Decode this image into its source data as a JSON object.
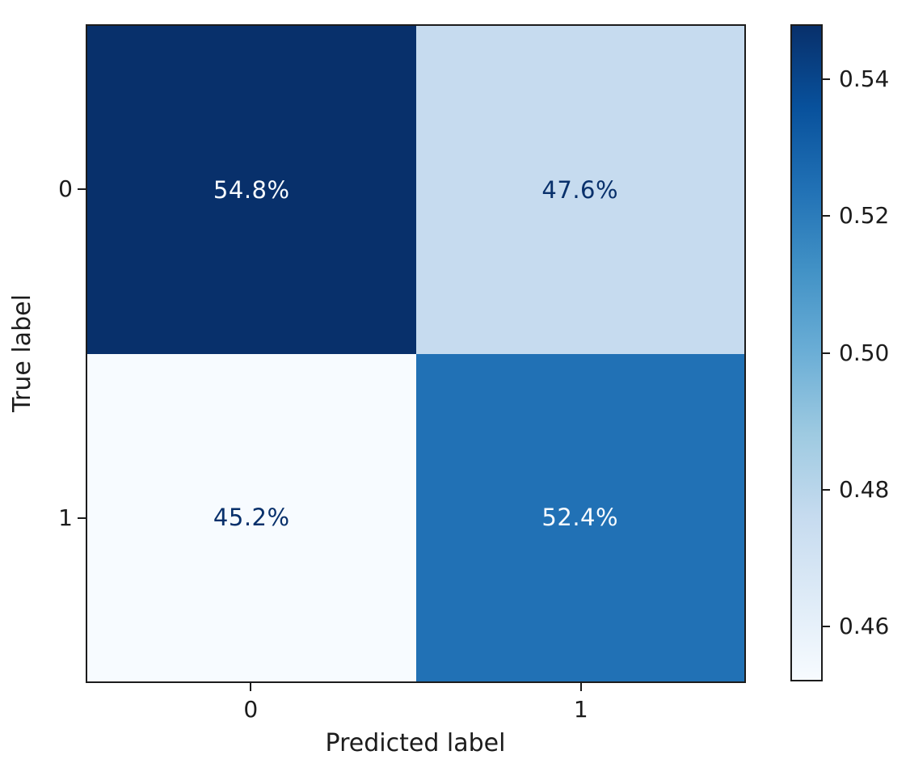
{
  "chart_data": {
    "type": "heatmap",
    "subtype": "confusion_matrix",
    "title": "",
    "xlabel": "Predicted label",
    "ylabel": "True label",
    "x_tick_labels": [
      "0",
      "1"
    ],
    "y_tick_labels": [
      "0",
      "1"
    ],
    "rows": [
      [
        {
          "label": "54.8%",
          "value": 0.548,
          "bg": "#08306b",
          "fg": "#f7fbff"
        },
        {
          "label": "47.6%",
          "value": 0.476,
          "bg": "#c6dbef",
          "fg": "#08306b"
        }
      ],
      [
        {
          "label": "45.2%",
          "value": 0.452,
          "bg": "#f7fbff",
          "fg": "#08306b"
        },
        {
          "label": "52.4%",
          "value": 0.524,
          "bg": "#2171b5",
          "fg": "#f7fbff"
        }
      ]
    ],
    "colorbar": {
      "colormap": "Blues",
      "vmin": 0.452,
      "vmax": 0.548,
      "tick_labels": [
        "0.54",
        "0.52",
        "0.50",
        "0.48",
        "0.46"
      ],
      "tick_values": [
        0.54,
        0.52,
        0.5,
        0.48,
        0.46
      ],
      "gradient_bottom_to_top": [
        "#f7fbff",
        "#deebf7",
        "#c6dbef",
        "#9ecae1",
        "#6baed6",
        "#4292c6",
        "#2171b5",
        "#08519c",
        "#08306b"
      ]
    },
    "axis_color": "#1c1c1c",
    "background": "#ffffff",
    "grid": false,
    "legend": false
  }
}
